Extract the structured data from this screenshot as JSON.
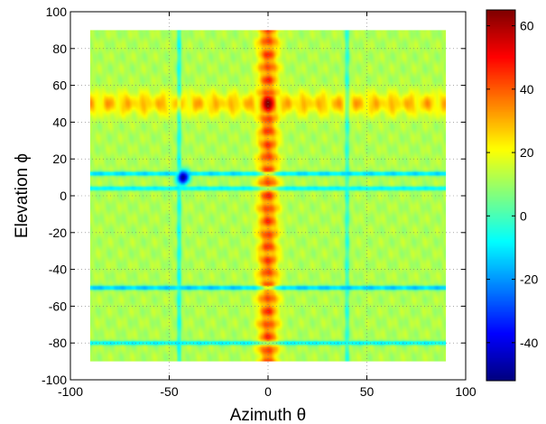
{
  "chart_data": {
    "type": "heatmap",
    "title": "",
    "xlabel": "Azimuth θ",
    "ylabel": "Elevation ϕ",
    "xlim": [
      -100,
      100
    ],
    "ylim": [
      -100,
      100
    ],
    "data_extent": {
      "x": [
        -90,
        90
      ],
      "y": [
        -90,
        90
      ]
    },
    "xticks": [
      -100,
      -50,
      0,
      50,
      100
    ],
    "yticks": [
      -100,
      -80,
      -60,
      -40,
      -20,
      0,
      20,
      40,
      60,
      80,
      100
    ],
    "grid": true,
    "colormap": "jet",
    "colorbar": {
      "range": [
        -52,
        65
      ],
      "ticks": [
        -40,
        -20,
        0,
        20,
        40,
        60
      ]
    },
    "background_value": 12,
    "features": [
      {
        "kind": "vertical-band",
        "x": 0,
        "width": 5,
        "value": 45,
        "note": "main lobe along azimuth 0"
      },
      {
        "kind": "horizontal-band",
        "y": 50,
        "width": 6,
        "value": 32,
        "note": "main lobe along elevation 50"
      },
      {
        "kind": "peak",
        "x": 0,
        "y": 50,
        "value": 65
      },
      {
        "kind": "horizontal-line",
        "y": 12,
        "value": -15
      },
      {
        "kind": "horizontal-line",
        "y": 4,
        "value": -12
      },
      {
        "kind": "horizontal-line",
        "y": -50,
        "value": -18
      },
      {
        "kind": "horizontal-line",
        "y": -80,
        "value": -12
      },
      {
        "kind": "vertical-line",
        "x": -45,
        "value": -8
      },
      {
        "kind": "vertical-line",
        "x": 40,
        "value": -5
      },
      {
        "kind": "null",
        "x": -43,
        "y": 10,
        "value": -50
      }
    ]
  }
}
